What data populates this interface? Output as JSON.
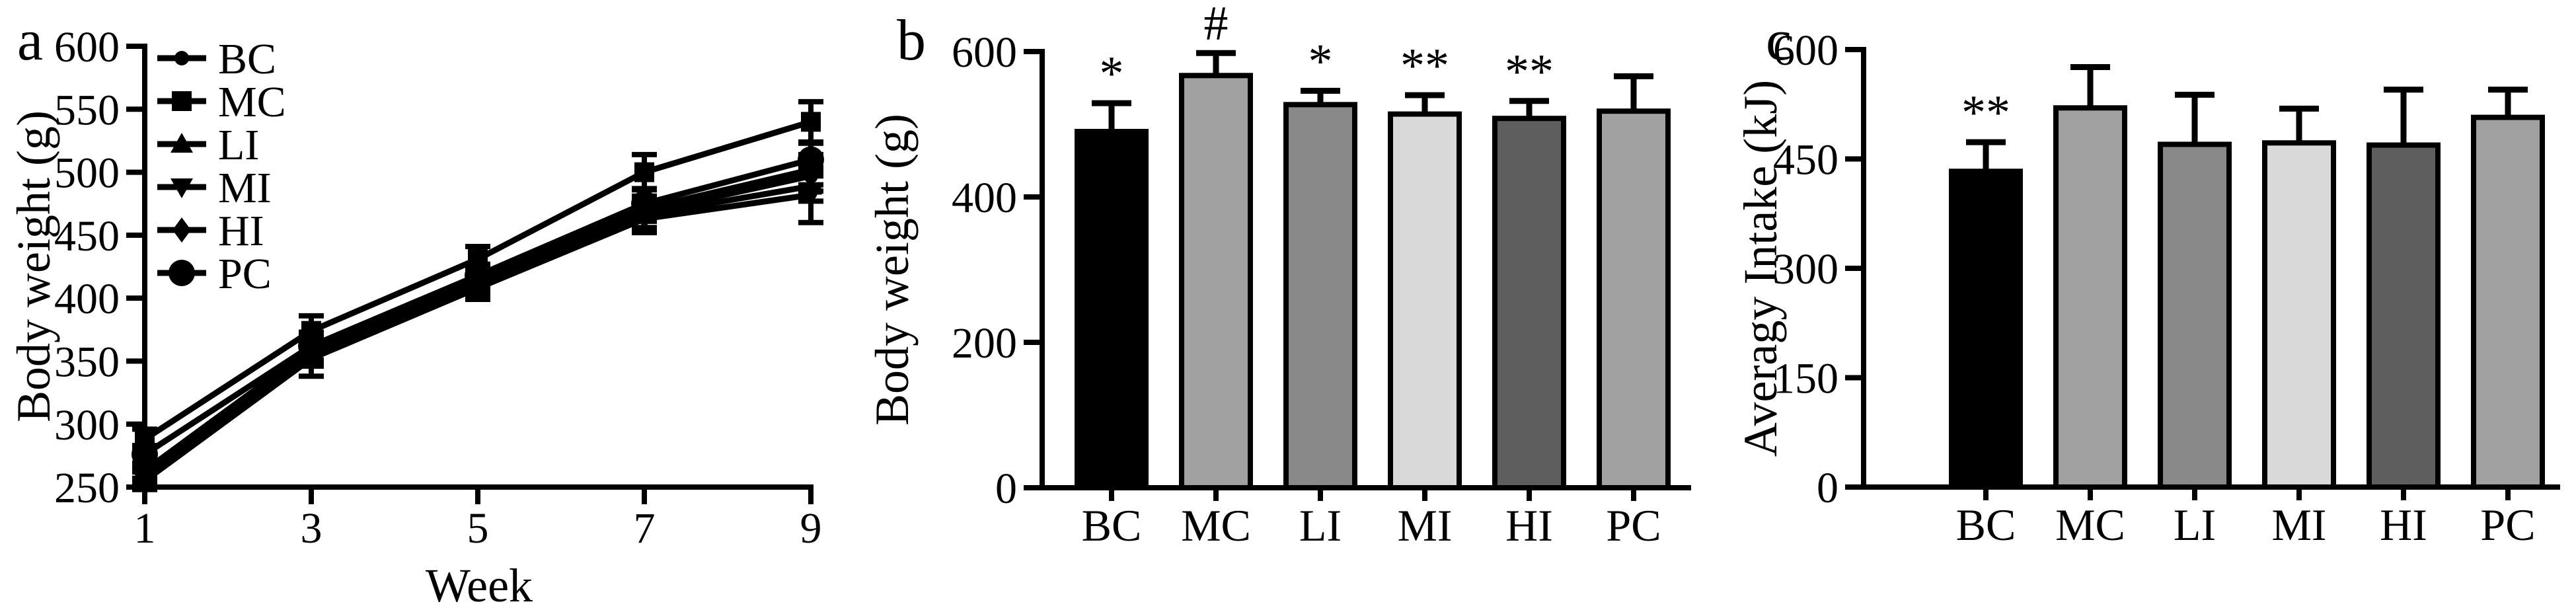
{
  "figure": {
    "background": "#ffffff",
    "ink": "#000000"
  },
  "chart_data": [
    {
      "panel": "a",
      "type": "line",
      "title": "",
      "xlabel": "Week",
      "ylabel": "Body weight (g)",
      "x": [
        1,
        3,
        5,
        7,
        9
      ],
      "xticks": [
        1,
        3,
        5,
        7,
        9
      ],
      "xlim": [
        1,
        9
      ],
      "ylim": [
        250,
        600
      ],
      "yticks": [
        250,
        300,
        350,
        400,
        450,
        500,
        550,
        600
      ],
      "grid": false,
      "legend_position": "upper-left-inside",
      "series": [
        {
          "name": "BC",
          "marker": "small-circle",
          "values": [
            262,
            356,
            413,
            468,
            497
          ],
          "errors": [
            6,
            10,
            8,
            12,
            12
          ]
        },
        {
          "name": "MC",
          "marker": "square",
          "values": [
            288,
            374,
            431,
            500,
            540
          ],
          "errors": [
            8,
            12,
            10,
            14,
            16
          ]
        },
        {
          "name": "LI",
          "marker": "triangle-up",
          "values": [
            259,
            358,
            411,
            466,
            489
          ],
          "errors": [
            6,
            10,
            8,
            10,
            12
          ]
        },
        {
          "name": "MI",
          "marker": "triangle-down",
          "values": [
            255,
            352,
            408,
            463,
            482
          ],
          "errors": [
            7,
            14,
            9,
            11,
            22
          ]
        },
        {
          "name": "HI",
          "marker": "diamond",
          "values": [
            263,
            360,
            415,
            471,
            502
          ],
          "errors": [
            6,
            10,
            8,
            10,
            12
          ]
        },
        {
          "name": "PC",
          "marker": "large-circle",
          "values": [
            276,
            362,
            418,
            475,
            510
          ],
          "errors": [
            7,
            11,
            9,
            12,
            13
          ]
        }
      ]
    },
    {
      "panel": "b",
      "type": "bar",
      "title": "",
      "xlabel": "",
      "ylabel": "Body weight (g)",
      "categories": [
        "BC",
        "MC",
        "LI",
        "MI",
        "HI",
        "PC"
      ],
      "values": [
        490,
        567,
        527,
        514,
        508,
        518
      ],
      "errors": [
        39,
        31,
        19,
        26,
        24,
        48
      ],
      "annotations": [
        "*",
        "#",
        "*",
        "**",
        "**",
        ""
      ],
      "bar_colors": [
        "#000000",
        "#a1a1a1",
        "#898989",
        "#d9d9d9",
        "#5e5e5e",
        "#a1a1a1"
      ],
      "ylim": [
        0,
        600
      ],
      "yticks": [
        0,
        200,
        400,
        600
      ],
      "grid": false
    },
    {
      "panel": "c",
      "type": "bar",
      "title": "",
      "xlabel": "",
      "ylabel": "Averagy Intake (kJ)",
      "categories": [
        "BC",
        "MC",
        "LI",
        "MI",
        "HI",
        "PC"
      ],
      "values": [
        433,
        520,
        470,
        472,
        469,
        507
      ],
      "errors": [
        40,
        56,
        68,
        47,
        76,
        38
      ],
      "annotations": [
        "**",
        "",
        "",
        "",
        "",
        ""
      ],
      "bar_colors": [
        "#000000",
        "#a1a1a1",
        "#898989",
        "#d9d9d9",
        "#5e5e5e",
        "#a1a1a1"
      ],
      "ylim": [
        0,
        600
      ],
      "yticks": [
        0,
        150,
        300,
        450,
        600
      ],
      "grid": false
    }
  ]
}
